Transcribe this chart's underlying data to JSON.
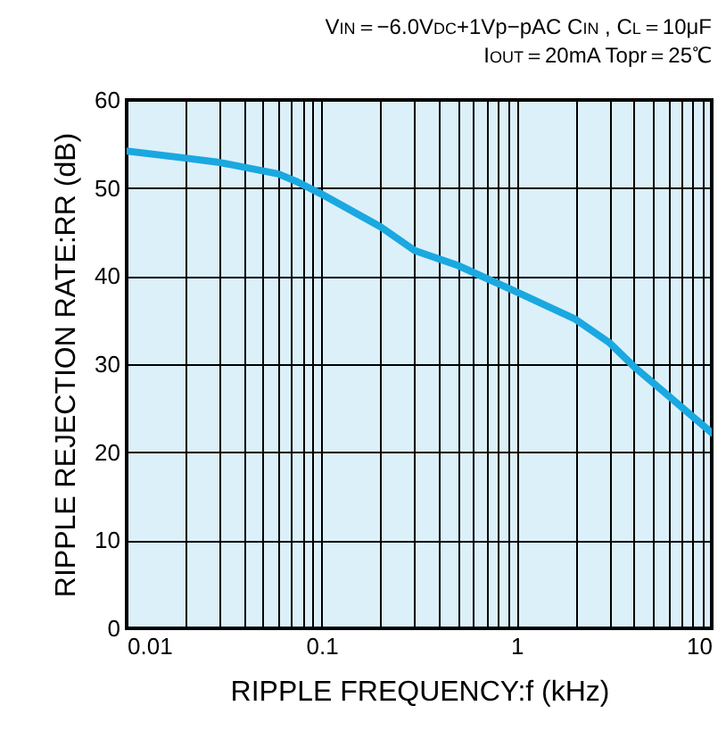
{
  "chart_data": {
    "type": "line",
    "xlabel": "RIPPLE FREQUENCY:f (kHz)",
    "ylabel": "RIPPLE REJECTION RATE:RR (dB)",
    "annotations": [
      "V$_{IN}$＝−6.0V$_{DC}$+1Vp−pAC C$_{IN}$ , C$_{L}$＝10μF",
      "I$_{OUT}$＝20mA Topr＝25℃"
    ],
    "x": [
      0.01,
      0.02,
      0.03,
      0.06,
      0.075,
      0.1,
      0.2,
      0.3,
      0.5,
      1,
      2,
      3,
      4,
      6,
      10
    ],
    "series": [
      {
        "color": "#1aa8e0",
        "values": [
          54.2,
          53.4,
          52.9,
          51.6,
          50.7,
          49.3,
          45.6,
          42.9,
          41.2,
          38.2,
          35.1,
          32.4,
          29.7,
          26.4,
          22.2
        ]
      }
    ],
    "log": "x",
    "xlim": [
      0.01,
      10
    ],
    "ylim": [
      0,
      60
    ],
    "xticks": [
      0.01,
      {
        "value": 0.02,
        "label": null
      },
      {
        "value": 0.03,
        "label": null
      },
      {
        "value": 0.04,
        "label": null
      },
      {
        "value": 0.05,
        "label": null
      },
      {
        "value": 0.06,
        "label": null
      },
      {
        "value": 0.07,
        "label": null
      },
      {
        "value": 0.08,
        "label": null
      },
      {
        "value": 0.09,
        "label": null
      },
      0.1,
      {
        "value": 0.2,
        "label": null
      },
      {
        "value": 0.3,
        "label": null
      },
      {
        "value": 0.4,
        "label": null
      },
      {
        "value": 0.5,
        "label": null
      },
      {
        "value": 0.6,
        "label": null
      },
      {
        "value": 0.7,
        "label": null
      },
      {
        "value": 0.8,
        "label": null
      },
      {
        "value": 0.9,
        "label": null
      },
      1,
      {
        "value": 2,
        "label": null
      },
      {
        "value": 3,
        "label": null
      },
      {
        "value": 4,
        "label": null
      },
      {
        "value": 5,
        "label": null
      },
      {
        "value": 6,
        "label": null
      },
      {
        "value": 7,
        "label": null
      },
      {
        "value": 8,
        "label": null
      },
      {
        "value": 9,
        "label": null
      },
      10
    ],
    "yticks": [
      0,
      10,
      20,
      30,
      40,
      50,
      60
    ],
    "grid": true
  }
}
